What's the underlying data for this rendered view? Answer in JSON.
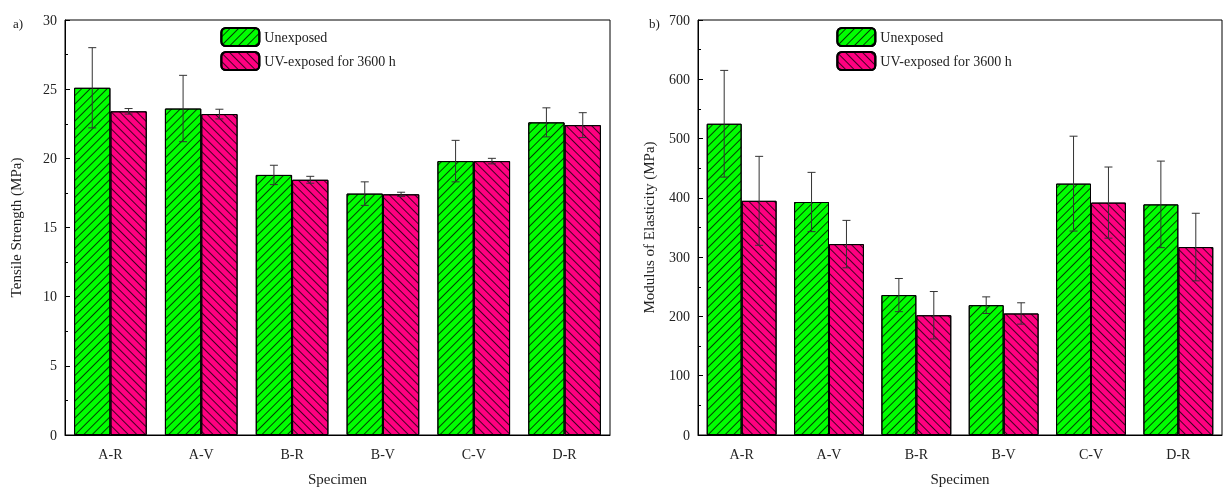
{
  "chart_data": [
    {
      "type": "bar",
      "title": "a)",
      "xlabel": "Specimen",
      "ylabel": "Tensile Strength (MPa)",
      "categories": [
        "A-R",
        "A-V",
        "B-R",
        "B-V",
        "C-V",
        "D-R"
      ],
      "series": [
        {
          "name": "Unexposed",
          "color": "#00ff00",
          "values": [
            25.1,
            23.6,
            18.8,
            17.45,
            19.8,
            22.6
          ],
          "errors": [
            2.9,
            2.4,
            0.7,
            0.85,
            1.5,
            1.05
          ]
        },
        {
          "name": "UV-exposed for 3600 h",
          "color": "#ff0080",
          "values": [
            23.4,
            23.2,
            18.45,
            17.4,
            19.8,
            22.4
          ],
          "errors": [
            0.2,
            0.35,
            0.25,
            0.15,
            0.2,
            0.9
          ]
        }
      ],
      "ylim": [
        0,
        30
      ],
      "yticks": [
        0,
        5,
        10,
        15,
        20,
        25,
        30
      ],
      "grid": false,
      "legend": "top"
    },
    {
      "type": "bar",
      "title": "b)",
      "xlabel": "Specimen",
      "ylabel": "Modulus of Elasticity (MPa)",
      "categories": [
        "A-R",
        "A-V",
        "B-R",
        "B-V",
        "C-V",
        "D-R"
      ],
      "series": [
        {
          "name": "Unexposed",
          "color": "#00ff00",
          "values": [
            525,
            393,
            236,
            219,
            424,
            389
          ],
          "errors": [
            90,
            50,
            28,
            14,
            80,
            73
          ]
        },
        {
          "name": "UV-exposed for 3600 h",
          "color": "#ff0080",
          "values": [
            395,
            322,
            202,
            205,
            392,
            317
          ],
          "errors": [
            75,
            40,
            40,
            18,
            60,
            57
          ]
        }
      ],
      "ylim": [
        0,
        700
      ],
      "yticks": [
        0,
        100,
        200,
        300,
        400,
        500,
        600,
        700
      ],
      "grid": false,
      "legend": "top"
    }
  ]
}
